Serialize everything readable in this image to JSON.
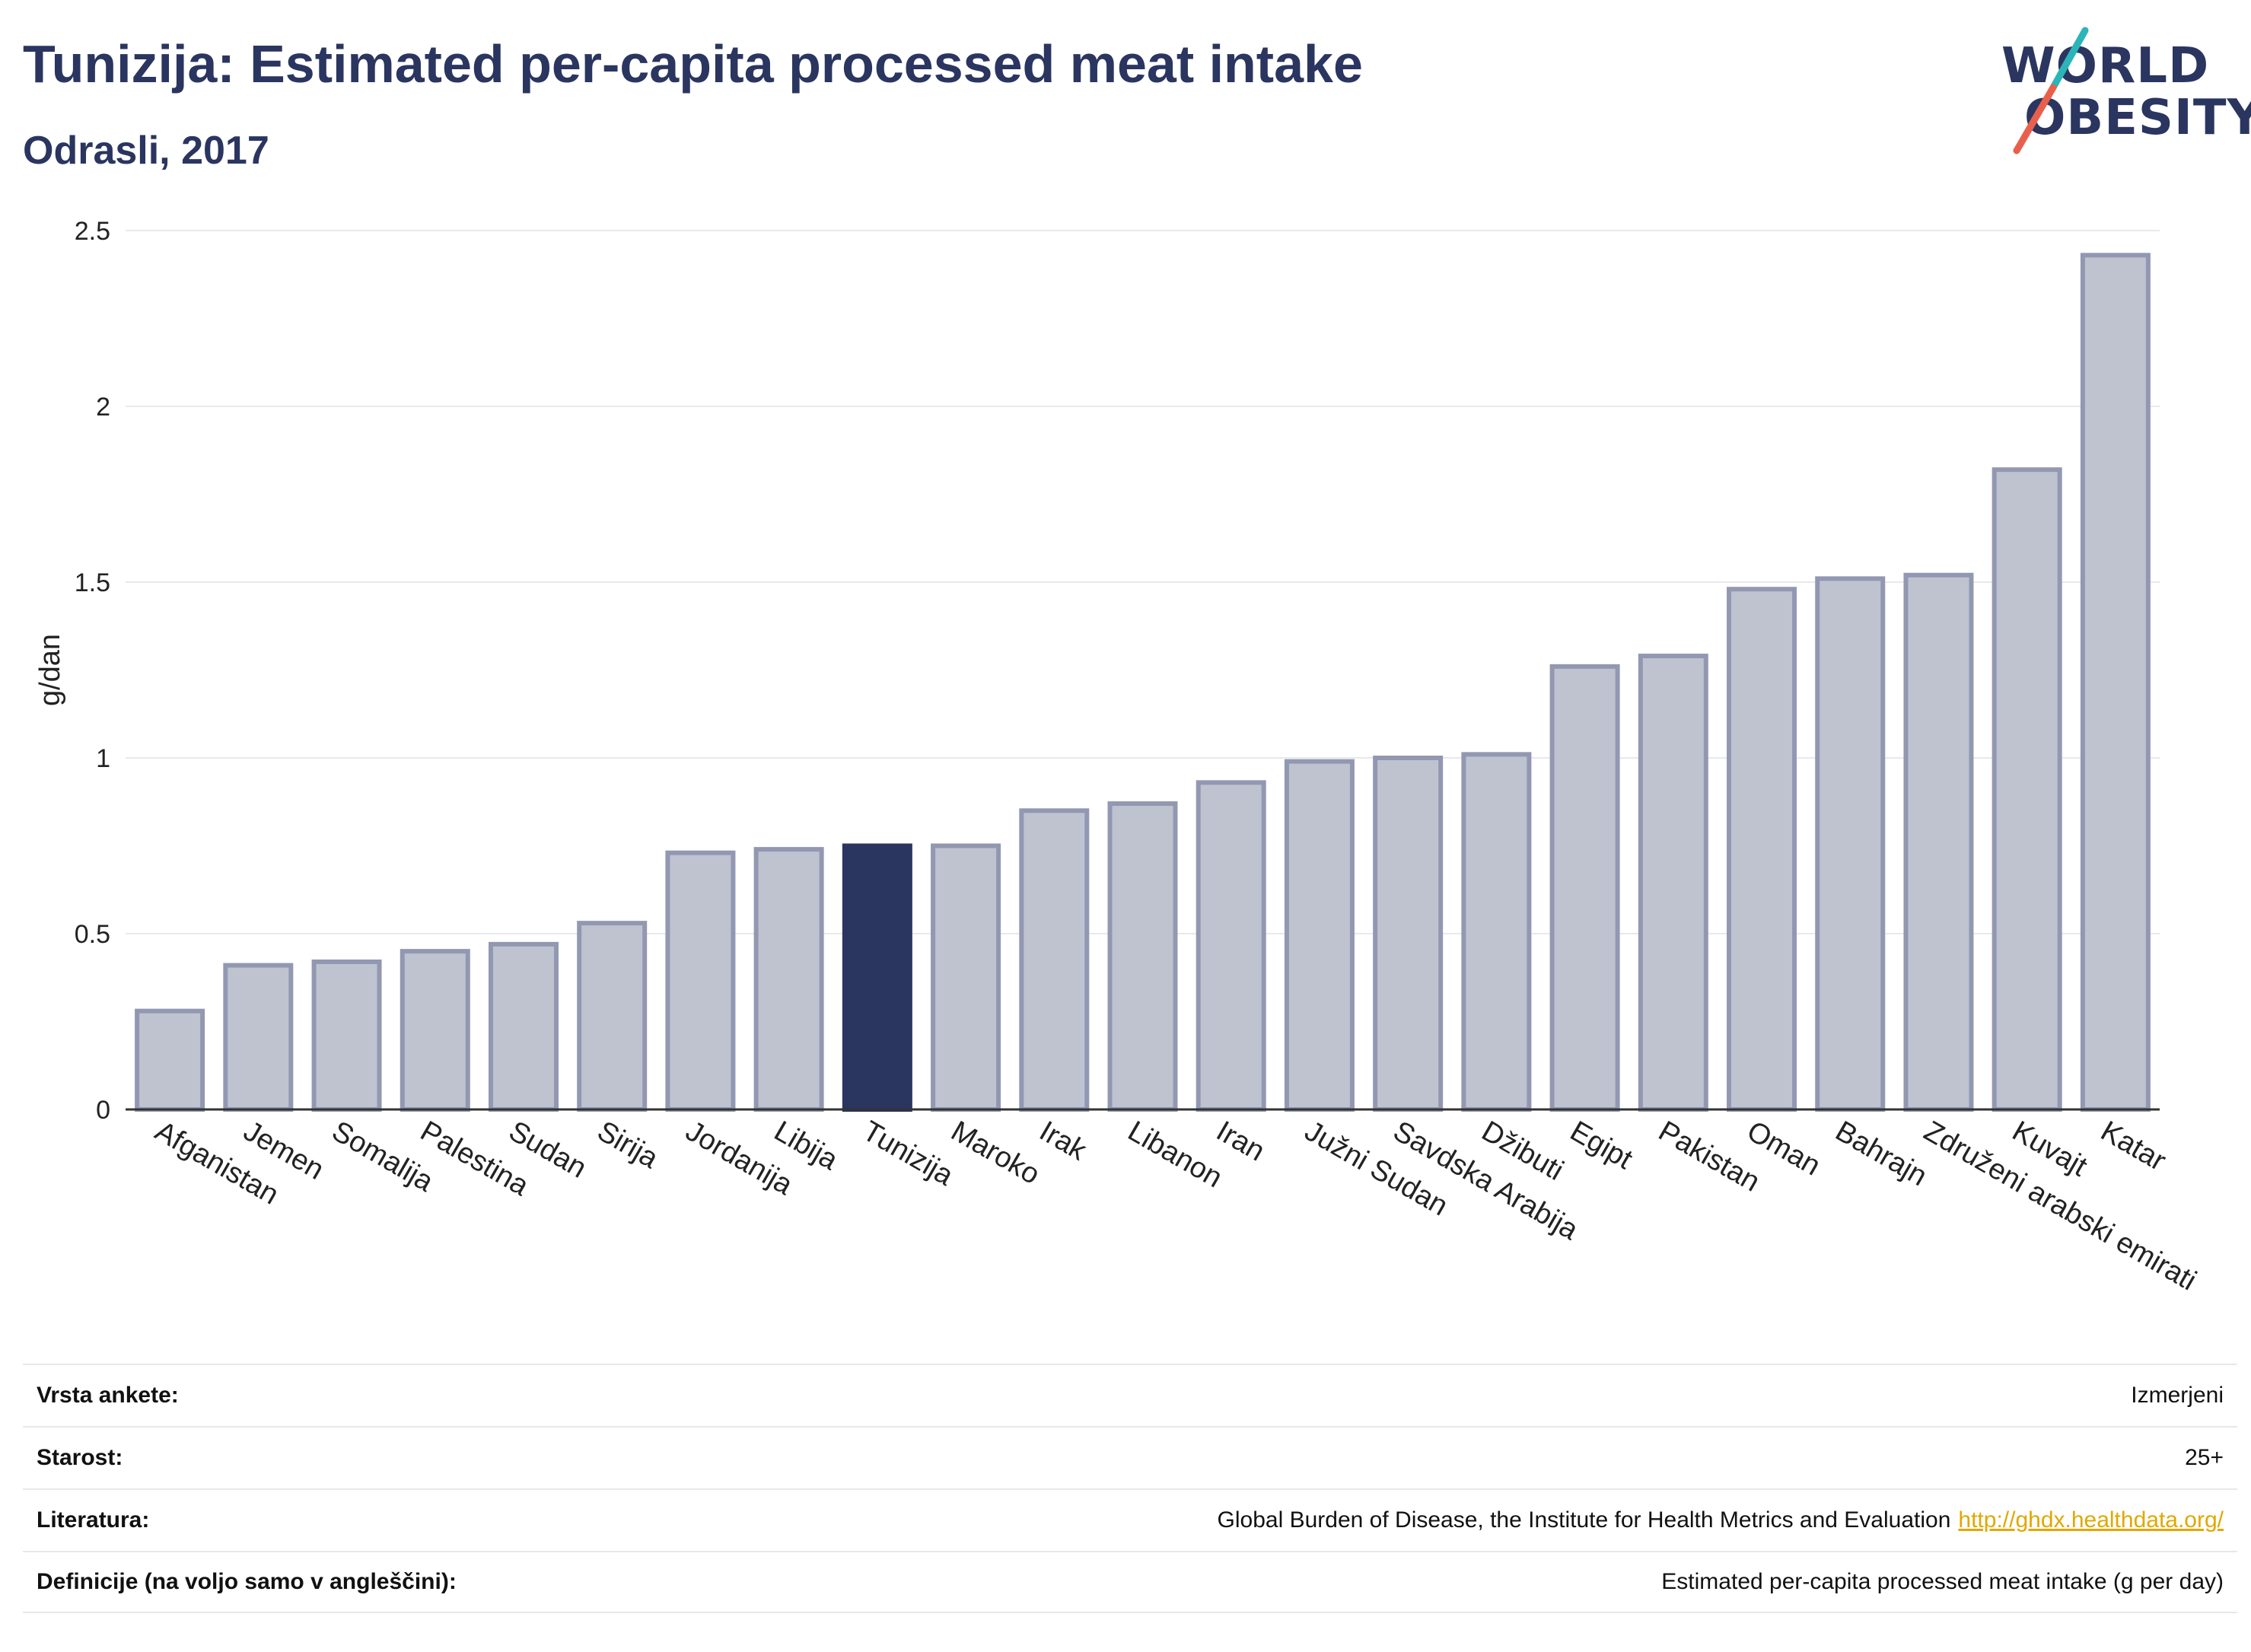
{
  "header": {
    "title": "Tunizija: Estimated per-capita processed meat intake",
    "subtitle": "Odrasli, 2017"
  },
  "logo": {
    "line1": "WORLD",
    "line2": "OBESITY",
    "slash_colors": [
      "#2bb5b8",
      "#e8604c"
    ]
  },
  "colors": {
    "highlight": "#2a3560",
    "bar": "#bfc3cf",
    "bar_border": "#9298b2",
    "grid": "#e8e9ee"
  },
  "chart_data": {
    "type": "bar",
    "title": "Tunizija: Estimated per-capita processed meat intake",
    "subtitle": "Odrasli, 2017",
    "ylabel": "g/dan",
    "ylim": [
      0,
      2.5
    ],
    "yticks": [
      0,
      0.5,
      1,
      1.5,
      2,
      2.5
    ],
    "ytick_labels": [
      "0",
      "0.5",
      "1",
      "1.5",
      "2",
      "2.5"
    ],
    "grid": true,
    "highlight": "Tunizija",
    "categories": [
      "Afganistan",
      "Jemen",
      "Somalija",
      "Palestina",
      "Sudan",
      "Sirija",
      "Jordanija",
      "Libija",
      "Tunizija",
      "Maroko",
      "Irak",
      "Libanon",
      "Iran",
      "Južni Sudan",
      "Savdska Arabija",
      "Džibuti",
      "Egipt",
      "Pakistan",
      "Oman",
      "Bahrajn",
      "Združeni arabski emirati",
      "Kuvajt",
      "Katar"
    ],
    "values": [
      0.28,
      0.41,
      0.42,
      0.45,
      0.47,
      0.53,
      0.73,
      0.74,
      0.75,
      0.75,
      0.85,
      0.87,
      0.93,
      0.99,
      1.0,
      1.01,
      1.26,
      1.29,
      1.48,
      1.51,
      1.52,
      1.82,
      2.43
    ]
  },
  "info": [
    {
      "label": "Vrsta ankete:",
      "value": "Izmerjeni",
      "link": ""
    },
    {
      "label": "Starost:",
      "value": "25+",
      "link": ""
    },
    {
      "label": "Literatura:",
      "value": "Global Burden of Disease, the Institute for Health Metrics and Evaluation",
      "link": "http://ghdx.healthdata.org/"
    },
    {
      "label": "Definicije (na voljo samo v angleščini):",
      "value": "Estimated per-capita processed meat intake (g per day)",
      "link": ""
    }
  ]
}
